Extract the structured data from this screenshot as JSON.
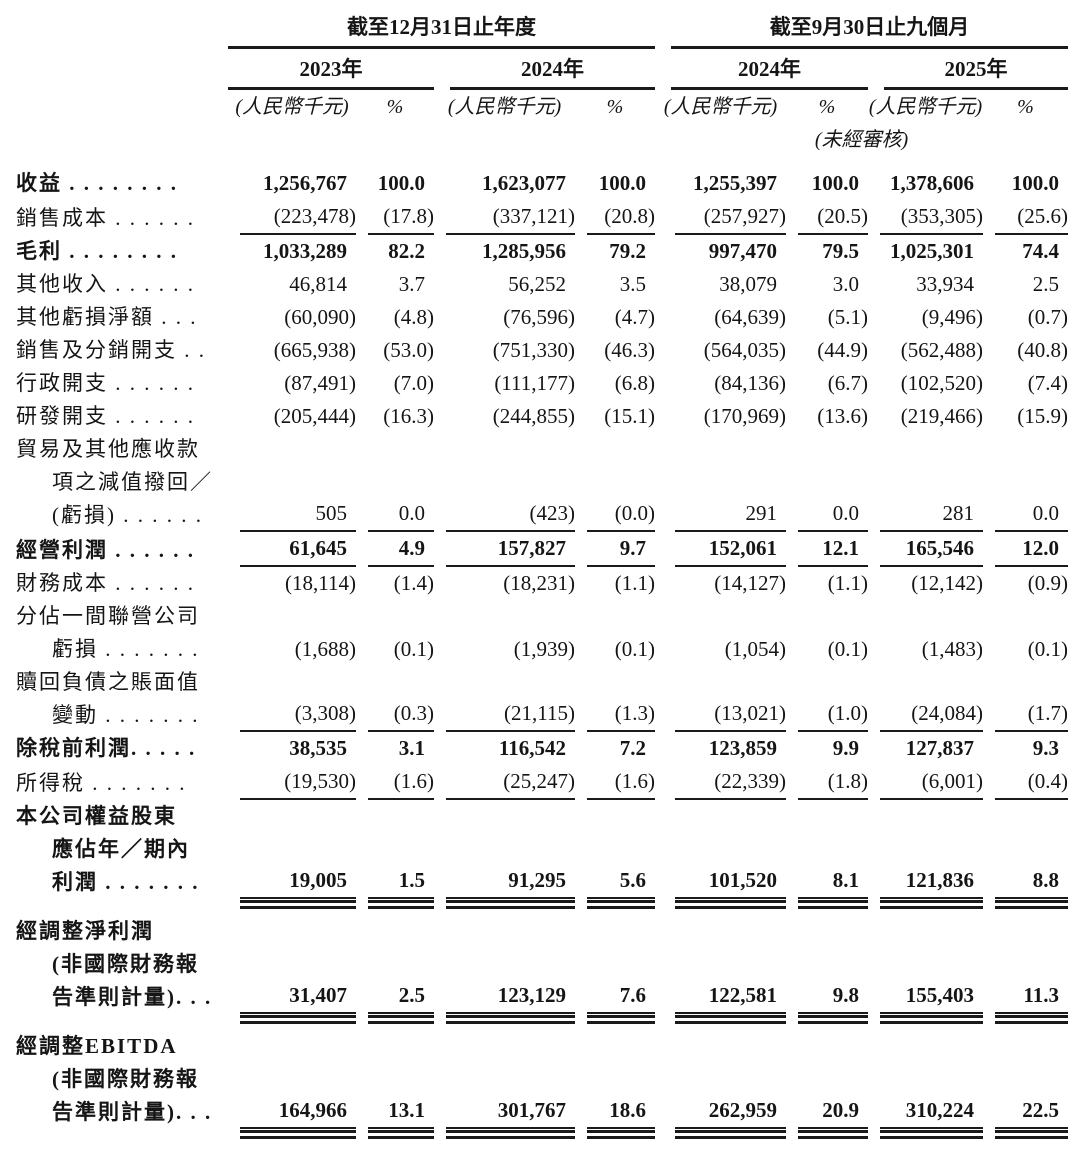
{
  "colors": {
    "text": "#151515",
    "rule": "#1a1a1a",
    "background": "#ffffff"
  },
  "header": {
    "groups": [
      {
        "title": "截至12月31日止年度",
        "years": [
          "2023年",
          "2024年"
        ],
        "note": ""
      },
      {
        "title": "截至9月30日止九個月",
        "years": [
          "2024年",
          "2025年"
        ],
        "note": "(未經審核)"
      }
    ],
    "unit_label": "(人民幣千元)",
    "pct_label": "%"
  },
  "rows": [
    {
      "lines": [
        "收益 . . . . . . . ."
      ],
      "bold": true,
      "rule": "",
      "values": [
        "1,256,767",
        "100.0",
        "1,623,077",
        "100.0",
        "1,255,397",
        "100.0",
        "1,378,606",
        "100.0"
      ]
    },
    {
      "lines": [
        "銷售成本 . . . . . ."
      ],
      "bold": false,
      "rule": "u",
      "values": [
        "(223,478)",
        "(17.8)",
        "(337,121)",
        "(20.8)",
        "(257,927)",
        "(20.5)",
        "(353,305)",
        "(25.6)"
      ]
    },
    {
      "lines": [
        "毛利 . . . . . . . ."
      ],
      "bold": true,
      "rule": "",
      "values": [
        "1,033,289",
        "82.2",
        "1,285,956",
        "79.2",
        "997,470",
        "79.5",
        "1,025,301",
        "74.4"
      ]
    },
    {
      "lines": [
        "其他收入 . . . . . ."
      ],
      "bold": false,
      "rule": "",
      "values": [
        "46,814",
        "3.7",
        "56,252",
        "3.5",
        "38,079",
        "3.0",
        "33,934",
        "2.5"
      ]
    },
    {
      "lines": [
        "其他虧損淨額 . . ."
      ],
      "bold": false,
      "rule": "",
      "values": [
        "(60,090)",
        "(4.8)",
        "(76,596)",
        "(4.7)",
        "(64,639)",
        "(5.1)",
        "(9,496)",
        "(0.7)"
      ]
    },
    {
      "lines": [
        "銷售及分銷開支 . ."
      ],
      "bold": false,
      "rule": "",
      "values": [
        "(665,938)",
        "(53.0)",
        "(751,330)",
        "(46.3)",
        "(564,035)",
        "(44.9)",
        "(562,488)",
        "(40.8)"
      ]
    },
    {
      "lines": [
        "行政開支 . . . . . ."
      ],
      "bold": false,
      "rule": "",
      "values": [
        "(87,491)",
        "(7.0)",
        "(111,177)",
        "(6.8)",
        "(84,136)",
        "(6.7)",
        "(102,520)",
        "(7.4)"
      ]
    },
    {
      "lines": [
        "研發開支 . . . . . ."
      ],
      "bold": false,
      "rule": "",
      "values": [
        "(205,444)",
        "(16.3)",
        "(244,855)",
        "(15.1)",
        "(170,969)",
        "(13.6)",
        "(219,466)",
        "(15.9)"
      ]
    },
    {
      "lines": [
        "貿易及其他應收款",
        "項之減值撥回／",
        "(虧損) . . . . . ."
      ],
      "bold": false,
      "rule": "u",
      "values": [
        "505",
        "0.0",
        "(423)",
        "(0.0)",
        "291",
        "0.0",
        "281",
        "0.0"
      ]
    },
    {
      "lines": [
        "經營利潤 . . . . . ."
      ],
      "bold": true,
      "rule": "u",
      "values": [
        "61,645",
        "4.9",
        "157,827",
        "9.7",
        "152,061",
        "12.1",
        "165,546",
        "12.0"
      ]
    },
    {
      "lines": [
        "財務成本 . . . . . ."
      ],
      "bold": false,
      "rule": "",
      "values": [
        "(18,114)",
        "(1.4)",
        "(18,231)",
        "(1.1)",
        "(14,127)",
        "(1.1)",
        "(12,142)",
        "(0.9)"
      ]
    },
    {
      "lines": [
        "分佔一間聯營公司",
        "虧損 . . . . . . ."
      ],
      "bold": false,
      "rule": "",
      "values": [
        "(1,688)",
        "(0.1)",
        "(1,939)",
        "(0.1)",
        "(1,054)",
        "(0.1)",
        "(1,483)",
        "(0.1)"
      ]
    },
    {
      "lines": [
        "贖回負債之賬面值",
        "變動 . . . . . . ."
      ],
      "bold": false,
      "rule": "u",
      "values": [
        "(3,308)",
        "(0.3)",
        "(21,115)",
        "(1.3)",
        "(13,021)",
        "(1.0)",
        "(24,084)",
        "(1.7)"
      ]
    },
    {
      "lines": [
        "除稅前利潤. . . . ."
      ],
      "bold": true,
      "rule": "",
      "values": [
        "38,535",
        "3.1",
        "116,542",
        "7.2",
        "123,859",
        "9.9",
        "127,837",
        "9.3"
      ]
    },
    {
      "lines": [
        "所得稅 . . . . . . ."
      ],
      "bold": false,
      "rule": "u",
      "values": [
        "(19,530)",
        "(1.6)",
        "(25,247)",
        "(1.6)",
        "(22,339)",
        "(1.8)",
        "(6,001)",
        "(0.4)"
      ]
    },
    {
      "lines": [
        "本公司權益股東",
        "應佔年／期內",
        "利潤 . . . . . . ."
      ],
      "bold": true,
      "rule": "uu",
      "values": [
        "19,005",
        "1.5",
        "91,295",
        "5.6",
        "101,520",
        "8.1",
        "121,836",
        "8.8"
      ]
    },
    {
      "lines": [
        "經調整淨利潤",
        "(非國際財務報",
        "告準則計量). . ."
      ],
      "bold": true,
      "rule": "uu",
      "values": [
        "31,407",
        "2.5",
        "123,129",
        "7.6",
        "122,581",
        "9.8",
        "155,403",
        "11.3"
      ]
    },
    {
      "lines": [
        "經調整EBITDA",
        "(非國際財務報",
        "告準則計量). . ."
      ],
      "bold": true,
      "rule": "uu",
      "values": [
        "164,966",
        "13.1",
        "301,767",
        "18.6",
        "262,959",
        "20.9",
        "310,224",
        "22.5"
      ]
    }
  ]
}
